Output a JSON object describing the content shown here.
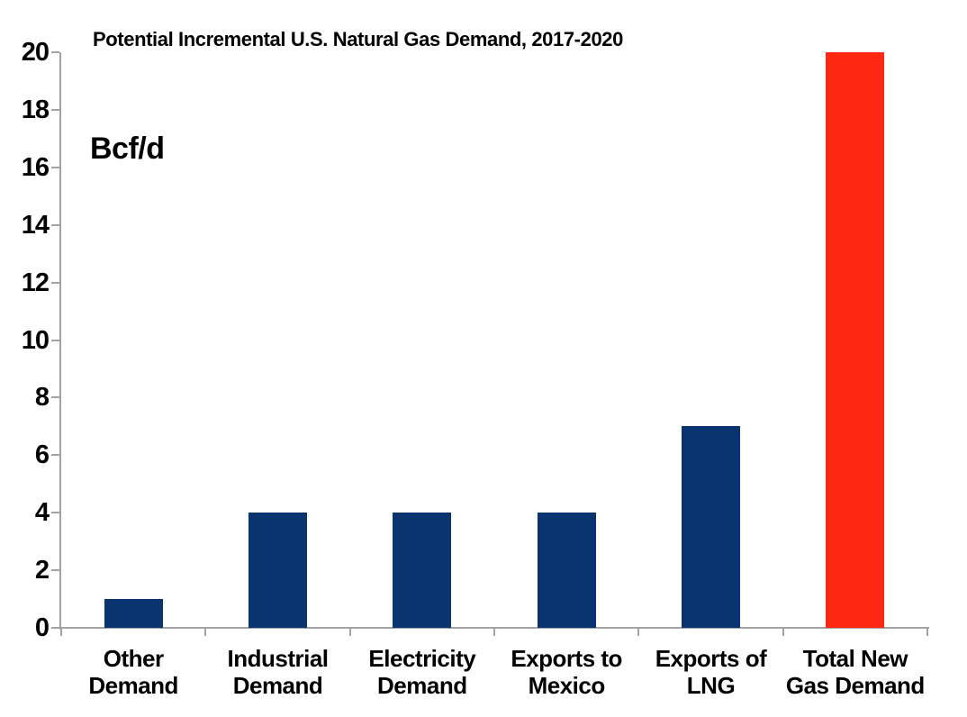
{
  "chart_data": {
    "type": "bar",
    "title": "Potential Incremental U.S. Natural Gas Demand, 2017-2020",
    "unit_label": "Bcf/d",
    "categories": [
      {
        "slug": "other-demand",
        "lines": [
          "Other",
          "Demand"
        ]
      },
      {
        "slug": "industrial-demand",
        "lines": [
          "Industrial",
          "Demand"
        ]
      },
      {
        "slug": "electricity-demand",
        "lines": [
          "Electricity",
          "Demand"
        ]
      },
      {
        "slug": "exports-to-mexico",
        "lines": [
          "Exports to",
          "Mexico"
        ]
      },
      {
        "slug": "exports-of-lng",
        "lines": [
          "Exports of",
          "LNG"
        ]
      },
      {
        "slug": "total-new-gas-demand",
        "lines": [
          "Total New",
          "Gas Demand"
        ]
      }
    ],
    "values": [
      1,
      4,
      4,
      4,
      7,
      20
    ],
    "bar_colors": [
      "#0a3470",
      "#0a3470",
      "#0a3470",
      "#0a3470",
      "#0a3470",
      "#fe2712"
    ],
    "xlabel": "",
    "ylabel": "Bcf/d",
    "ylim": [
      0,
      20
    ],
    "yticks": [
      0,
      2,
      4,
      6,
      8,
      10,
      12,
      14,
      16,
      18,
      20
    ],
    "grid": false,
    "legend": "none",
    "axis_color": "#a3a3a3",
    "text_color": "#000000",
    "background_color": "#ffffff"
  }
}
